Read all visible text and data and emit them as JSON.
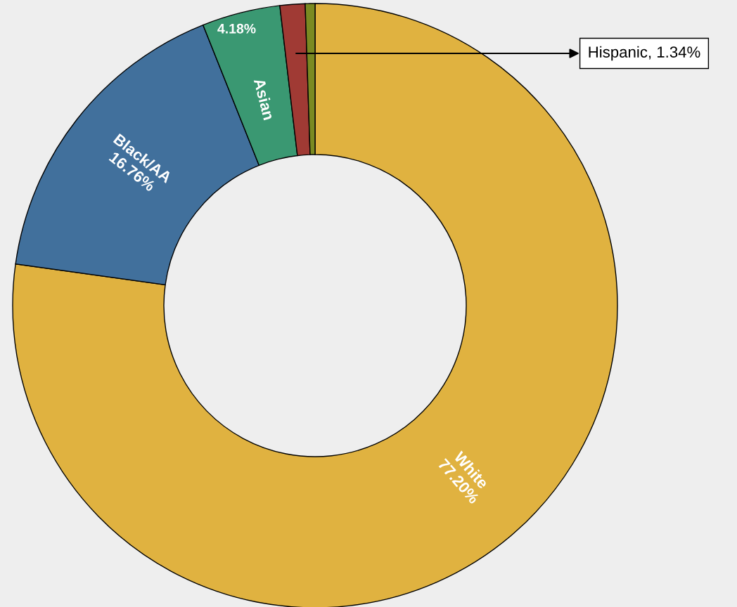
{
  "chart_data": {
    "type": "donut",
    "categories": [
      "White",
      "Black/AA",
      "Asian",
      "Hispanic",
      null
    ],
    "values": [
      77.2,
      16.76,
      4.18,
      1.34,
      0.52
    ],
    "colors": [
      "#e0b240",
      "#41709c",
      "#3a9872",
      "#a03a34",
      "#7a8a22"
    ],
    "value_labels": [
      "77.20%",
      "16.76%",
      "4.18%",
      "1.34%",
      null
    ],
    "legend": false
  }
}
